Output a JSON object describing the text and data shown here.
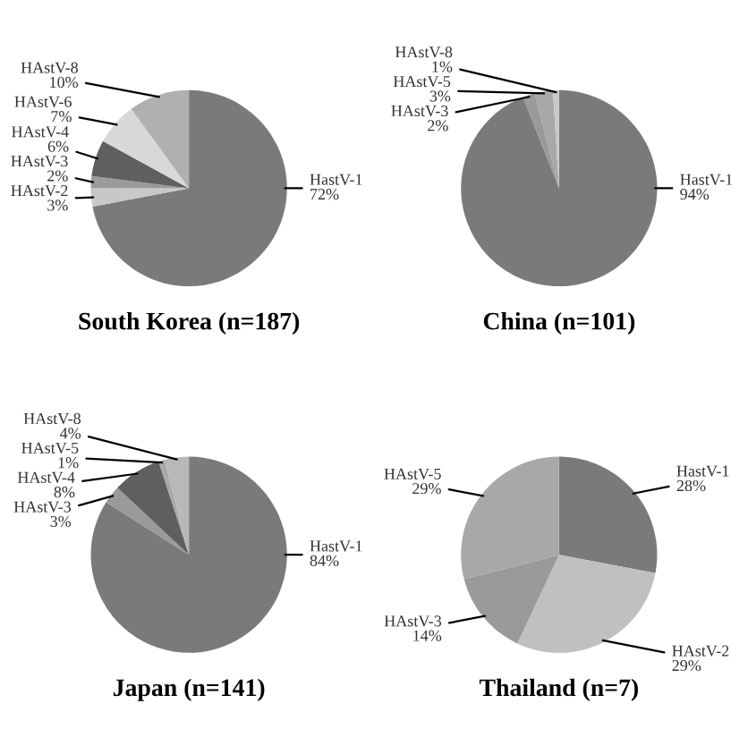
{
  "chart_data": [
    {
      "type": "pie",
      "title": "South Korea (n=187)",
      "categories": [
        "HastV-1",
        "HAstV-2",
        "HAstV-3",
        "HAstV-4",
        "HAstV-6",
        "HAstV-8"
      ],
      "values": [
        72,
        3,
        2,
        6,
        7,
        10
      ],
      "value_labels": [
        "72%",
        "3%",
        "2%",
        "6%",
        "7%",
        "10%"
      ],
      "colors": [
        "#7a7a7a",
        "#c8c8c8",
        "#9a9a9a",
        "#5f5f5f",
        "#d8d8d8",
        "#b0b0b0"
      ],
      "legend": false
    },
    {
      "type": "pie",
      "title": "China (n=101)",
      "categories": [
        "HastV-1",
        "HAstV-3",
        "HAstV-5",
        "HAstV-8"
      ],
      "values": [
        94,
        2,
        3,
        1
      ],
      "value_labels": [
        "94%",
        "2%",
        "3%",
        "1%"
      ],
      "colors": [
        "#7a7a7a",
        "#9a9a9a",
        "#a8a8a8",
        "#c8c8c8"
      ],
      "legend": false
    },
    {
      "type": "pie",
      "title": "Japan (n=141)",
      "categories": [
        "HastV-1",
        "HAstV-3",
        "HAstV-4",
        "HAstV-5",
        "HAstV-8"
      ],
      "values": [
        84,
        3,
        8,
        1,
        4
      ],
      "value_labels": [
        "84%",
        "3%",
        "8%",
        "1%",
        "4%"
      ],
      "colors": [
        "#7a7a7a",
        "#9a9a9a",
        "#5f5f5f",
        "#a8a8a8",
        "#b8b8b8"
      ],
      "legend": false
    },
    {
      "type": "pie",
      "title": "Thailand (n=7)",
      "categories": [
        "HastV-1",
        "HAstV-2",
        "HAstV-3",
        "HAstV-5"
      ],
      "values": [
        28,
        29,
        14,
        29
      ],
      "value_labels": [
        "28%",
        "29%",
        "14%",
        "29%"
      ],
      "colors": [
        "#7a7a7a",
        "#c0c0c0",
        "#9a9a9a",
        "#a8a8a8"
      ],
      "legend": false
    }
  ]
}
